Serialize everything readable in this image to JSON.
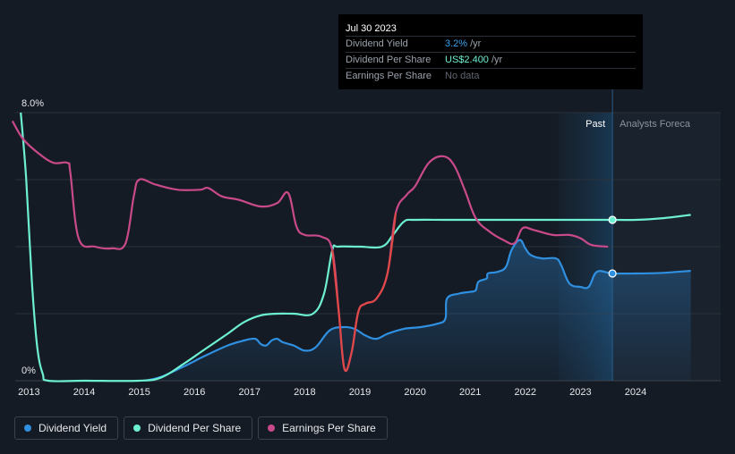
{
  "chart_data": {
    "type": "line",
    "y_axis": {
      "min": 0,
      "max": 8,
      "unit": "%",
      "top_label": "8.0%",
      "bottom_label": "0%"
    },
    "x_axis": {
      "min": 2012.75,
      "max": 2025.0,
      "ticks": [
        "2013",
        "2014",
        "2015",
        "2016",
        "2017",
        "2018",
        "2019",
        "2020",
        "2021",
        "2022",
        "2023",
        "2024"
      ]
    },
    "regions": {
      "past_label": "Past",
      "forecast_label": "Analysts Foreca",
      "past_shade_start": 2022.6,
      "cursor": 2023.58
    },
    "series": [
      {
        "name": "Dividend Yield",
        "color": "#2f8fe0",
        "points": [
          [
            2015.1,
            0
          ],
          [
            2015.4,
            0.12
          ],
          [
            2015.8,
            0.42
          ],
          [
            2016.2,
            0.75
          ],
          [
            2016.6,
            1.05
          ],
          [
            2016.9,
            1.2
          ],
          [
            2017.1,
            1.25
          ],
          [
            2017.2,
            1.1
          ],
          [
            2017.3,
            1.05
          ],
          [
            2017.4,
            1.2
          ],
          [
            2017.5,
            1.25
          ],
          [
            2017.6,
            1.15
          ],
          [
            2017.8,
            1.05
          ],
          [
            2018.0,
            0.9
          ],
          [
            2018.2,
            1.0
          ],
          [
            2018.45,
            1.5
          ],
          [
            2018.7,
            1.6
          ],
          [
            2018.9,
            1.55
          ],
          [
            2019.1,
            1.35
          ],
          [
            2019.3,
            1.25
          ],
          [
            2019.5,
            1.4
          ],
          [
            2019.8,
            1.55
          ],
          [
            2020.1,
            1.6
          ],
          [
            2020.4,
            1.7
          ],
          [
            2020.55,
            1.85
          ],
          [
            2020.58,
            2.45
          ],
          [
            2020.8,
            2.6
          ],
          [
            2021.0,
            2.65
          ],
          [
            2021.1,
            2.7
          ],
          [
            2021.15,
            2.95
          ],
          [
            2021.3,
            3.05
          ],
          [
            2021.32,
            3.2
          ],
          [
            2021.5,
            3.25
          ],
          [
            2021.65,
            3.4
          ],
          [
            2021.75,
            3.9
          ],
          [
            2021.9,
            4.2
          ],
          [
            2022.0,
            3.95
          ],
          [
            2022.1,
            3.75
          ],
          [
            2022.3,
            3.65
          ],
          [
            2022.55,
            3.65
          ],
          [
            2022.65,
            3.45
          ],
          [
            2022.8,
            2.9
          ],
          [
            2023.0,
            2.8
          ],
          [
            2023.15,
            2.8
          ],
          [
            2023.3,
            3.25
          ],
          [
            2023.58,
            3.2
          ],
          [
            2024.0,
            3.2
          ],
          [
            2024.5,
            3.22
          ],
          [
            2025.0,
            3.28
          ]
        ]
      },
      {
        "name": "Dividend Per Share",
        "color": "#6df0d2",
        "points": [
          [
            2012.85,
            8.0
          ],
          [
            2012.95,
            6.0
          ],
          [
            2013.05,
            3.0
          ],
          [
            2013.15,
            1.0
          ],
          [
            2013.25,
            0.2
          ],
          [
            2013.35,
            0
          ],
          [
            2014.0,
            0
          ],
          [
            2015.0,
            0
          ],
          [
            2015.4,
            0.1
          ],
          [
            2015.8,
            0.5
          ],
          [
            2016.2,
            0.95
          ],
          [
            2016.6,
            1.4
          ],
          [
            2016.9,
            1.75
          ],
          [
            2017.2,
            1.95
          ],
          [
            2017.5,
            2.0
          ],
          [
            2017.8,
            2.0
          ],
          [
            2018.15,
            2.0
          ],
          [
            2018.35,
            2.6
          ],
          [
            2018.5,
            3.9
          ],
          [
            2018.6,
            4.0
          ],
          [
            2019.0,
            4.0
          ],
          [
            2019.4,
            4.0
          ],
          [
            2019.6,
            4.35
          ],
          [
            2019.8,
            4.75
          ],
          [
            2020.0,
            4.8
          ],
          [
            2020.6,
            4.8
          ],
          [
            2021.5,
            4.8
          ],
          [
            2022.5,
            4.8
          ],
          [
            2023.58,
            4.8
          ],
          [
            2024.0,
            4.8
          ],
          [
            2024.5,
            4.85
          ],
          [
            2025.0,
            4.95
          ]
        ]
      },
      {
        "name": "Earnings Per Share",
        "color": "#c94a8a",
        "points": [
          [
            2012.7,
            7.75
          ],
          [
            2012.9,
            7.2
          ],
          [
            2013.2,
            6.75
          ],
          [
            2013.45,
            6.5
          ],
          [
            2013.7,
            6.5
          ],
          [
            2013.75,
            6.2
          ],
          [
            2013.9,
            4.25
          ],
          [
            2014.2,
            4.0
          ],
          [
            2014.5,
            3.95
          ],
          [
            2014.75,
            4.1
          ],
          [
            2014.9,
            5.5
          ],
          [
            2015.0,
            6.0
          ],
          [
            2015.3,
            5.85
          ],
          [
            2015.7,
            5.7
          ],
          [
            2016.1,
            5.7
          ],
          [
            2016.25,
            5.75
          ],
          [
            2016.5,
            5.5
          ],
          [
            2016.8,
            5.4
          ],
          [
            2017.2,
            5.2
          ],
          [
            2017.5,
            5.3
          ],
          [
            2017.7,
            5.6
          ],
          [
            2017.85,
            4.6
          ],
          [
            2018.0,
            4.35
          ],
          [
            2018.3,
            4.3
          ],
          [
            2018.5,
            3.9
          ],
          [
            2018.62,
            2.0
          ],
          [
            2018.72,
            0.35
          ],
          [
            2018.85,
            0.85
          ],
          [
            2018.97,
            2.05
          ],
          [
            2019.1,
            2.3
          ],
          [
            2019.3,
            2.45
          ],
          [
            2019.5,
            3.2
          ],
          [
            2019.65,
            5.0
          ],
          [
            2019.85,
            5.55
          ],
          [
            2020.0,
            5.8
          ],
          [
            2020.25,
            6.5
          ],
          [
            2020.5,
            6.7
          ],
          [
            2020.7,
            6.45
          ],
          [
            2020.9,
            5.7
          ],
          [
            2021.1,
            4.85
          ],
          [
            2021.35,
            4.45
          ],
          [
            2021.6,
            4.2
          ],
          [
            2021.8,
            4.1
          ],
          [
            2021.95,
            4.55
          ],
          [
            2022.15,
            4.5
          ],
          [
            2022.5,
            4.35
          ],
          [
            2022.8,
            4.35
          ],
          [
            2023.0,
            4.25
          ],
          [
            2023.2,
            4.05
          ],
          [
            2023.5,
            4.0
          ]
        ]
      }
    ],
    "markers": [
      {
        "series": "Dividend Per Share",
        "x": 2023.58,
        "y": 4.8
      },
      {
        "series": "Dividend Yield",
        "x": 2023.58,
        "y": 3.2
      }
    ]
  },
  "tooltip": {
    "date": "Jul 30 2023",
    "rows": [
      {
        "label": "Dividend Yield",
        "value": "3.2%",
        "suffix": "/yr"
      },
      {
        "label": "Dividend Per Share",
        "value": "US$2.400",
        "suffix": "/yr"
      },
      {
        "label": "Earnings Per Share",
        "value": "No data",
        "suffix": ""
      }
    ]
  },
  "legend": [
    {
      "label": "Dividend Yield",
      "color": "#2f8fe0"
    },
    {
      "label": "Dividend Per Share",
      "color": "#6df0d2"
    },
    {
      "label": "Earnings Per Share",
      "color": "#c94a8a"
    }
  ]
}
